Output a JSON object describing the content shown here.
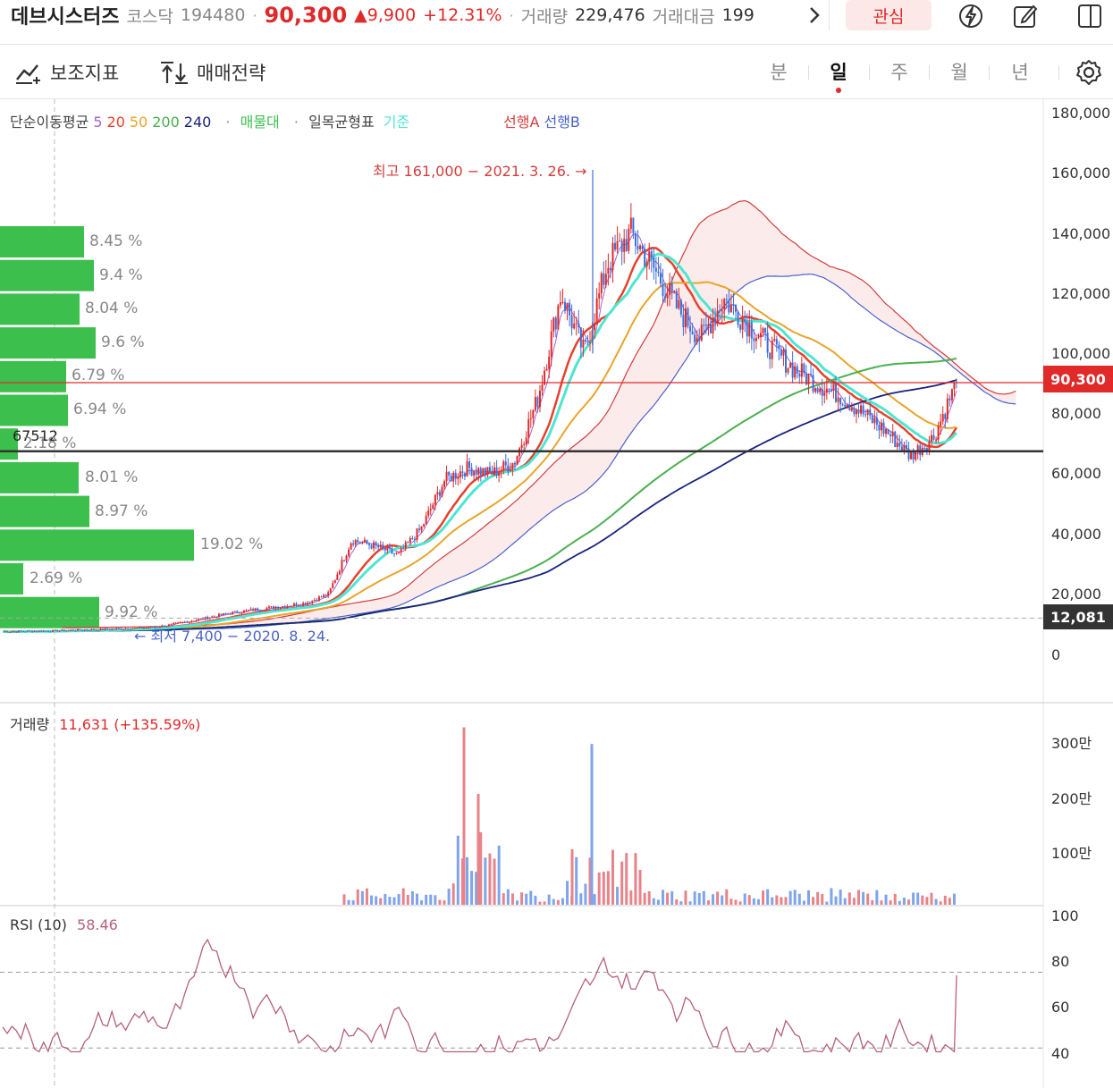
{
  "header": {
    "name": "데브시스터즈",
    "market": "코스닥",
    "code": "194480",
    "price": "90,300",
    "change": "▲9,900",
    "change_pct": "+12.31%",
    "volume_label": "거래량",
    "volume": "229,476",
    "amount_label": "거래대금",
    "amount": "199",
    "more_icon": "chevron-right-icon",
    "watch_label": "관심",
    "icons": [
      "lightning-icon",
      "edit-icon",
      "panel-icon"
    ]
  },
  "toolbar": {
    "indicator_label": "보조지표",
    "strategy_label": "매매전략",
    "periods": [
      "분",
      "일",
      "주",
      "월",
      "년"
    ],
    "active_period": "일"
  },
  "legend": {
    "sma_label": "단순이동평균",
    "sma_periods": [
      "5",
      "20",
      "50",
      "200",
      "240"
    ],
    "sma_colors": [
      "#a463d6",
      "#e8412d",
      "#e8a52a",
      "#4caf50",
      "#1a237e"
    ],
    "supply_label": "매물대",
    "ichimoku_label": "일목균형표",
    "kijun_label": "기준",
    "senkou_a_label": "선행A",
    "senkou_b_label": "선행B"
  },
  "annotations": {
    "high": "최고 161,000 − 2021. 3. 26. →",
    "low": "← 최저 7,400 − 2020. 8. 24.",
    "supply_price": "67512",
    "current_badge": "90,300",
    "low_badge": "12,081"
  },
  "y_axis": {
    "price_ticks": [
      "180,000",
      "160,000",
      "140,000",
      "120,000",
      "100,000",
      "80,000",
      "60,000",
      "40,000",
      "20,000",
      "0"
    ],
    "volume_ticks": [
      "300만",
      "200만",
      "100만"
    ],
    "rsi_ticks": [
      "100",
      "80",
      "60",
      "40"
    ]
  },
  "volume_profile": [
    "8.45 %",
    "9.4 %",
    "8.04 %",
    "9.6 %",
    "6.79 %",
    "6.94 %",
    "2.18 %",
    "8.01 %",
    "8.97 %",
    "19.02 %",
    "2.69 %",
    "9.92 %"
  ],
  "volume_panel": {
    "label": "거래량",
    "value": "11,631 (+135.59%)"
  },
  "rsi_panel": {
    "label": "RSI (10)",
    "value": "58.46"
  },
  "colors": {
    "up": "#e02929",
    "down": "#3d6fd9",
    "kijun": "#4de6d0",
    "senkou_a": "#d43c3c",
    "senkou_b": "#4a62c9",
    "volume_profile": "#3dbf4e",
    "rsi": "#b5617a"
  },
  "chart_data": {
    "type": "candlestick",
    "date_range": [
      "2020. 8. 24.",
      "2021. 3. 26."
    ],
    "ylim": [
      0,
      180000
    ],
    "high": 161000,
    "low": 7400,
    "current": 90300,
    "support_line": 67512,
    "low_line": 12081,
    "close_approx": [
      7600,
      7700,
      7800,
      8000,
      8200,
      8500,
      8800,
      9500,
      11000,
      12500,
      14000,
      15000,
      16000,
      17000,
      20000,
      38000,
      36000,
      33000,
      42000,
      58000,
      62000,
      60000,
      64000,
      85000,
      120000,
      100000,
      130000,
      140000,
      128000,
      115000,
      105000,
      118000,
      110000,
      102000,
      95000,
      90000,
      86000,
      80000,
      74000,
      66000,
      72000,
      90300
    ],
    "volume_peaks_in_10k": [
      320,
      200,
      290,
      100
    ],
    "rsi_last": 58.46,
    "rsi_levels": [
      70,
      30
    ]
  }
}
